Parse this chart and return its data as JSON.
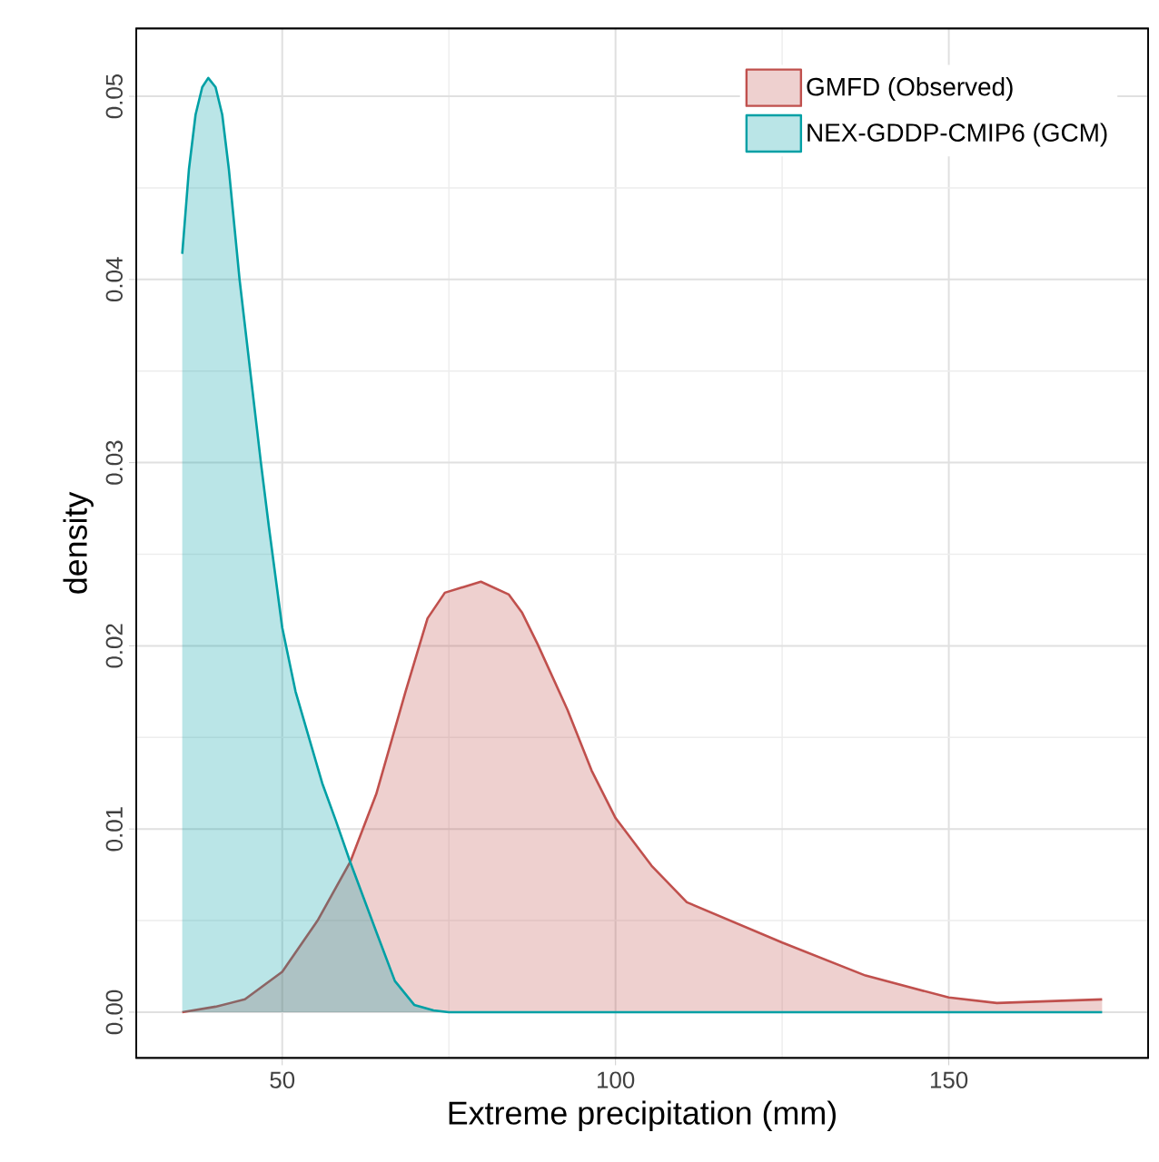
{
  "chart_data": {
    "type": "area",
    "xlabel": "Extreme precipitation (mm)",
    "ylabel": "density",
    "xlim": [
      28.1,
      179.9
    ],
    "ylim": [
      -0.0025,
      0.0537
    ],
    "xticks": [
      50,
      100,
      150
    ],
    "yticks": [
      {
        "value": 0,
        "label": "0.00"
      },
      {
        "value": 0.01,
        "label": "0.01"
      },
      {
        "value": 0.02,
        "label": "0.02"
      },
      {
        "value": 0.03,
        "label": "0.03"
      },
      {
        "value": 0.04,
        "label": "0.04"
      },
      {
        "value": 0.05,
        "label": "0.05"
      }
    ],
    "grid": true,
    "legend": "top right",
    "series": [
      {
        "name": "GMFD (Observed)",
        "color": "#c0504d",
        "x": [
          35,
          40,
          44.4,
          50,
          55.3,
          60.2,
          64.1,
          68.5,
          71.8,
          74.4,
          79.8,
          84,
          86,
          88.3,
          92.8,
          96.4,
          100,
          105.4,
          110.7,
          125,
          137.5,
          150,
          157.2,
          165,
          173
        ],
        "values": [
          0.0,
          0.0003,
          0.0007,
          0.0022,
          0.005,
          0.0082,
          0.0119,
          0.0175,
          0.0215,
          0.0229,
          0.0235,
          0.0228,
          0.0218,
          0.0201,
          0.0165,
          0.0132,
          0.0106,
          0.008,
          0.006,
          0.0038,
          0.002,
          0.0008,
          0.0005,
          0.0006,
          0.0007
        ]
      },
      {
        "name": "NEX-GDDP-CMIP6 (GCM)",
        "color": "#00a0a5",
        "x": [
          35,
          36,
          37,
          38,
          38.9,
          40,
          41,
          42,
          43.6,
          46.8,
          48,
          50,
          52,
          54.4,
          56,
          58,
          60.2,
          64.1,
          66.9,
          69.8,
          72.7,
          75,
          80,
          100,
          130,
          173
        ],
        "values": [
          0.0414,
          0.046,
          0.049,
          0.0505,
          0.051,
          0.0505,
          0.049,
          0.046,
          0.04,
          0.03,
          0.0265,
          0.021,
          0.0175,
          0.0145,
          0.0125,
          0.0105,
          0.0082,
          0.0044,
          0.0017,
          0.0004,
          0.0001,
          0.0,
          0.0,
          0.0,
          0.0,
          0.0
        ]
      }
    ]
  }
}
